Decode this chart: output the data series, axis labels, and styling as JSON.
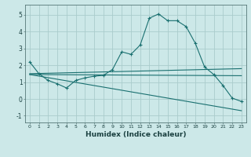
{
  "xlabel": "Humidex (Indice chaleur)",
  "bg_color": "#cce8e8",
  "grid_color": "#aacccc",
  "line_color": "#1a7070",
  "xlim": [
    -0.5,
    23.5
  ],
  "ylim": [
    -1.4,
    5.6
  ],
  "yticks": [
    -1,
    0,
    1,
    2,
    3,
    4,
    5
  ],
  "xticks": [
    0,
    1,
    2,
    3,
    4,
    5,
    6,
    7,
    8,
    9,
    10,
    11,
    12,
    13,
    14,
    15,
    16,
    17,
    18,
    19,
    20,
    21,
    22,
    23
  ],
  "line1_x": [
    0,
    1,
    2,
    3,
    4,
    5,
    6,
    7,
    8,
    9,
    10,
    11,
    12,
    13,
    14,
    15,
    16,
    17,
    18,
    19,
    20,
    21,
    22,
    23
  ],
  "line1_y": [
    2.2,
    1.5,
    1.1,
    0.9,
    0.65,
    1.1,
    1.25,
    1.35,
    1.4,
    1.75,
    2.8,
    2.65,
    3.2,
    4.8,
    5.05,
    4.65,
    4.65,
    4.3,
    3.3,
    1.9,
    1.45,
    0.8,
    0.05,
    -0.15
  ],
  "line2_x": [
    0,
    23
  ],
  "line2_y": [
    1.5,
    1.8
  ],
  "line3_x": [
    0,
    23
  ],
  "line3_y": [
    1.45,
    1.38
  ],
  "line4_x": [
    0,
    23
  ],
  "line4_y": [
    1.45,
    -0.7
  ]
}
